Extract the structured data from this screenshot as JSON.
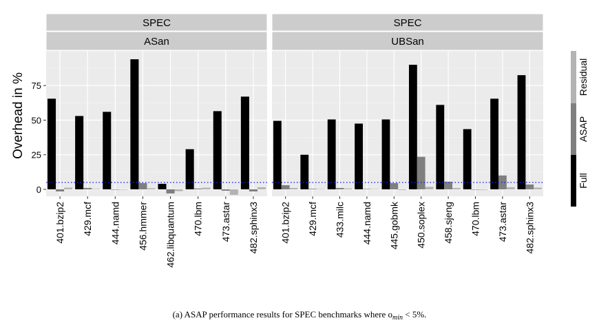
{
  "chart_data": {
    "type": "bar",
    "ylabel": "Overhead in %",
    "ylim": [
      -5,
      100
    ],
    "yticks": [
      0,
      25,
      50,
      75
    ],
    "threshold_line": 5,
    "grid": true,
    "legend_position": "right",
    "series": [
      {
        "name": "Full",
        "color": "#000000"
      },
      {
        "name": "ASAP",
        "color": "#7f7f7f"
      },
      {
        "name": "Residual",
        "color": "#b3b3b3"
      }
    ],
    "panels": [
      {
        "strip_top": "SPEC",
        "strip_bottom": "ASan",
        "categories": [
          "401.bzip2",
          "429.mcf",
          "444.namd",
          "456.hmmer",
          "462.libquantum",
          "470.lbm",
          "473.astar",
          "482.sphinx3"
        ],
        "values": {
          "Full": [
            65.5,
            53,
            56,
            94,
            4,
            29,
            56.5,
            67
          ],
          "ASAP": [
            -1.5,
            1.0,
            -0.3,
            4.5,
            -3,
            0.6,
            -1,
            -1.5
          ],
          "Residual": [
            1.2,
            0.3,
            -0.3,
            0.8,
            -1.3,
            1.2,
            -4,
            1.5
          ]
        }
      },
      {
        "strip_top": "SPEC",
        "strip_bottom": "UBSan",
        "categories": [
          "401.bzip2",
          "429.mcf",
          "433.milc",
          "444.namd",
          "445.gobmk",
          "450.soplex",
          "458.sjeng",
          "470.lbm",
          "473.astar",
          "482.sphinx3"
        ],
        "values": {
          "Full": [
            49.5,
            25,
            50.5,
            47.5,
            50.5,
            90,
            61,
            43.5,
            65.5,
            82.5
          ],
          "ASAP": [
            3,
            0.4,
            1.0,
            0.3,
            4.5,
            23.5,
            5.5,
            -0.3,
            10,
            3.5
          ],
          "Residual": [
            1.0,
            0.2,
            0.6,
            0.2,
            -0.5,
            1.8,
            1.0,
            -0.4,
            1.5,
            1.2
          ]
        }
      }
    ]
  },
  "caption": "(a) ASAP performance results for SPEC benchmarks where o",
  "caption_sub": "min",
  "caption_tail": " < 5%."
}
